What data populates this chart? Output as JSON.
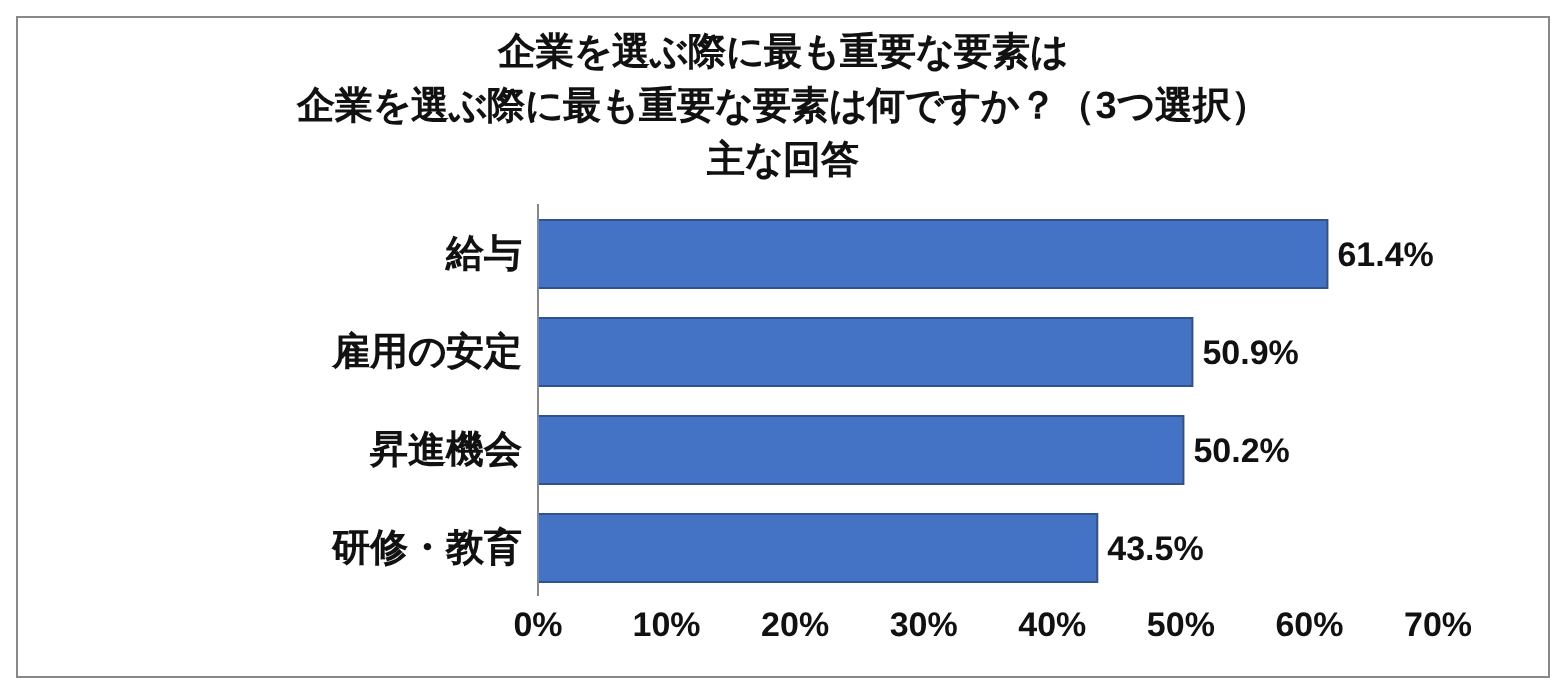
{
  "chart_data": {
    "type": "bar",
    "orientation": "horizontal",
    "title": "企業を選ぶ際に最も重要な要素は",
    "subtitle": "企業を選ぶ際に最も重要な要素は何ですか？（3つ選択）",
    "annotations": [
      "主な回答"
    ],
    "categories": [
      "給与",
      "雇用の安定",
      "昇進機会",
      "研修・教育"
    ],
    "values": [
      61.4,
      50.9,
      50.2,
      43.5
    ],
    "value_labels": [
      "61.4%",
      "50.9%",
      "50.2%",
      "43.5%"
    ],
    "color": "#4472c4",
    "xlim": [
      0,
      70
    ],
    "xticks": [
      {
        "value": 0,
        "label": "0%"
      },
      {
        "value": 10,
        "label": "10%"
      },
      {
        "value": 20,
        "label": "20%"
      },
      {
        "value": 30,
        "label": "30%"
      },
      {
        "value": 40,
        "label": "40%"
      },
      {
        "value": 50,
        "label": "50%"
      },
      {
        "value": 60,
        "label": "60%"
      },
      {
        "value": 70,
        "label": "70%"
      }
    ],
    "grid": false,
    "legend": false
  }
}
